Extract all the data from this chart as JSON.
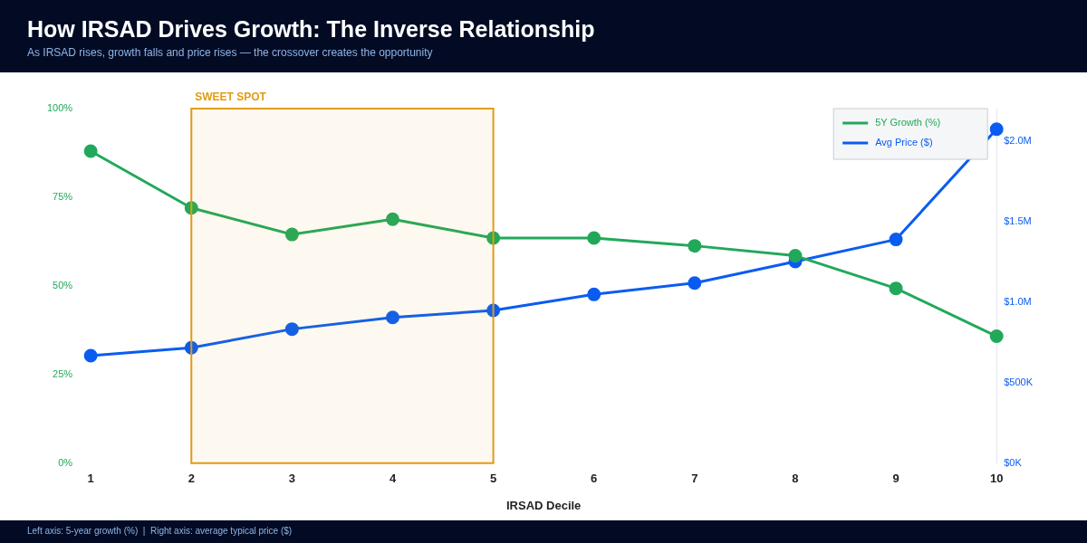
{
  "chart_data": {
    "type": "line",
    "title": "How IRSAD Drives Growth: The Inverse Relationship",
    "subtitle": "As IRSAD rises, growth falls and price rises — the crossover creates the opportunity",
    "xlabel": "IRSAD Decile",
    "categories": [
      "1",
      "2",
      "3",
      "4",
      "5",
      "6",
      "7",
      "8",
      "9",
      "10"
    ],
    "series": [
      {
        "name": "5Y Growth (%)",
        "color": "#22a85a",
        "values": [
          88,
          72,
          64.5,
          68.8,
          63.5,
          63.5,
          61.3,
          58.5,
          49.3,
          35.8
        ]
      },
      {
        "name": "Avg Price ($)",
        "color": "#0a5cf0",
        "axis": "y2",
        "values": [
          667000,
          716000,
          832000,
          904000,
          948000,
          1047000,
          1118000,
          1251000,
          1388000,
          2072000
        ]
      }
    ],
    "ylim": [
      0,
      100
    ],
    "yticks": [
      {
        "value": 0,
        "label": "0%"
      },
      {
        "value": 25,
        "label": "25%"
      },
      {
        "value": 50,
        "label": "50%"
      },
      {
        "value": 75,
        "label": "75%"
      },
      {
        "value": 100,
        "label": "100%"
      }
    ],
    "y2lim": [
      0,
      2200000
    ],
    "y2ticks": [
      {
        "value": 0,
        "label": "$0K"
      },
      {
        "value": 500000,
        "label": "$500K"
      },
      {
        "value": 1000000,
        "label": "$1.0M"
      },
      {
        "value": 1500000,
        "label": "$1.5M"
      },
      {
        "value": 2000000,
        "label": "$2.0M"
      }
    ],
    "bands": [
      {
        "axis": "x",
        "from": "2",
        "to": "5",
        "label": "SWEET SPOT",
        "color": "#e39b12"
      }
    ],
    "annotations": [
      "Left axis: 5-year growth (%)  |  Right axis: average typical price ($)"
    ],
    "grid": false,
    "legend": "top right",
    "marker": "circle",
    "line_style": "solid"
  }
}
